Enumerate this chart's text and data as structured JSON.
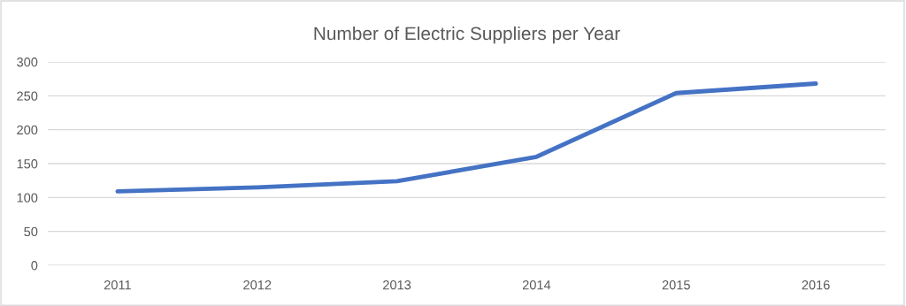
{
  "chart_data": {
    "type": "line",
    "title": "Number of Electric Suppliers per Year",
    "categories": [
      "2011",
      "2012",
      "2013",
      "2014",
      "2015",
      "2016"
    ],
    "series": [
      {
        "color": "#4472c4",
        "values": [
          109,
          115,
          124,
          160,
          254,
          268
        ]
      }
    ],
    "ylim": [
      0,
      300
    ],
    "yticks": [
      0,
      50,
      100,
      150,
      200,
      250,
      300
    ],
    "grid": "y",
    "marker": "none",
    "line_style": "solid"
  }
}
